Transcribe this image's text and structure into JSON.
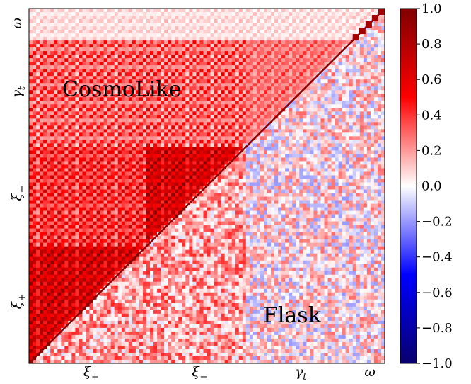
{
  "chart_data": {
    "type": "heatmap",
    "title": "",
    "description_blocks": [
      "ξ+",
      "ξ−",
      "γt",
      "ω"
    ],
    "x_axis_labels": [
      {
        "symbol": "ξ",
        "sub": "+"
      },
      {
        "symbol": "ξ",
        "sub": "−"
      },
      {
        "symbol": "γ",
        "sub": "t"
      },
      {
        "symbol": "ω",
        "sub": ""
      }
    ],
    "y_axis_labels": [
      {
        "symbol": "ω",
        "sub": ""
      },
      {
        "symbol": "γ",
        "sub": "t"
      },
      {
        "symbol": "ξ",
        "sub": "−"
      },
      {
        "symbol": "ξ",
        "sub": "+"
      }
    ],
    "block_fractions": [
      0.33,
      0.28,
      0.3,
      0.09
    ],
    "upper_triangle_label": "CosmoLike",
    "lower_triangle_label": "Flask",
    "colorbar": {
      "min": -1.0,
      "max": 1.0,
      "ticks": [
        1.0,
        0.8,
        0.6,
        0.4,
        0.2,
        0.0,
        -0.2,
        -0.4,
        -0.6,
        -0.8,
        -1.0
      ],
      "tick_labels": [
        "1.0",
        "0.8",
        "0.6",
        "0.4",
        "0.2",
        "0.0",
        "−0.2",
        "−0.4",
        "−0.6",
        "−0.8",
        "−1.0"
      ],
      "colors": [
        "#08006e",
        "#0000ff",
        "#ffffff",
        "#ff0000",
        "#800000"
      ]
    }
  }
}
